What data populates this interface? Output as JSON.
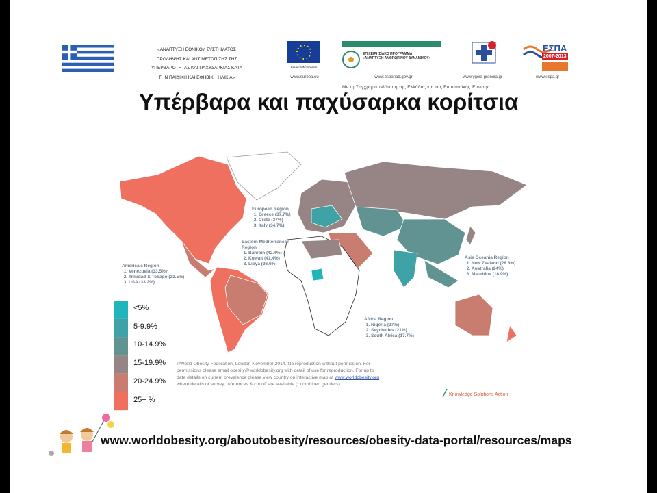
{
  "header": {
    "program_lines": [
      "«ΑΝΑΠΤΥΞΗ ΕΘΝΙΚΟΥ ΣΥΣΤΗΜΑΤΟΣ",
      "ΠΡΟΛΗΨΗΣ ΚΑΙ ΑΝΤΙΜΕΤΩΠΙΣΗΣ ΤΗΣ",
      "ΥΠΕΡΒΑΡΟΤΗΤΑΣ ΚΑΙ ΠΑΧΥΣΑΡΚΙΑΣ ΚΑΤΑ",
      "ΤΗΝ ΠΑΙΔΙΚΗ ΚΑΙ ΕΦΗΒΙΚΗ ΗΛΙΚΙΑ»"
    ],
    "eu_caption": "Ευρωπαϊκή Ένωση",
    "espanad_lines": [
      "ΕΠΙΧΕΙΡΗΣΙΑΚΟ ΠΡΟΓΡΑΜΜΑ",
      "«ΑΝΑΠΤΥΞΗ ΑΝΘΡΩΠΙΝΟΥ ΔΥΝΑΜΙΚΟΥ»"
    ],
    "espa_name": "ΕΣΠΑ",
    "espa_years": "2007-2013",
    "links": [
      "www.europa.eu",
      "www.espanad.gov.gr",
      "www.ygeia-pronoia.gr",
      "www.espa.gr"
    ],
    "cofunding": "Με τη Συγχρηματοδότηση της Ελλάδας και της Ευρωπαϊκής Ένωσης"
  },
  "title": "Υπέρβαρα και παχύσαρκα κορίτσια",
  "regions": [
    {
      "name": "European Region",
      "items": [
        "Greece (37.7%)",
        "Crete (37%)",
        "Italy (34.7%)"
      ]
    },
    {
      "name": "Eastern Mediterranean Region",
      "items": [
        "Bahrain (42.4%)",
        "Kuwait (41.4%)",
        "Libya (36.6%)"
      ]
    },
    {
      "name": "America's  Region",
      "items": [
        "Venezuela (33.5%)*",
        "Trinidad & Tobago (33.5%)",
        "USA (33.2%)"
      ]
    },
    {
      "name": "Asia Oceania Region",
      "items": [
        "New Zealand (28.8%)",
        "Australia (24%)",
        "Mauritius (18.9%)"
      ]
    },
    {
      "name": "Africa  Region",
      "items": [
        "Nigeria (27%)",
        "Seychelles (21%)",
        "South Africa (17.7%)"
      ]
    }
  ],
  "legend": [
    {
      "label": "<5%",
      "color": "#1fb5bb"
    },
    {
      "label": "5-9.9%",
      "color": "#3fa2a6"
    },
    {
      "label": "10-14.9%",
      "color": "#629393"
    },
    {
      "label": "15-19.9%",
      "color": "#968584"
    },
    {
      "label": "20-24.9%",
      "color": "#c97c70"
    },
    {
      "label": "25+ %",
      "color": "#f0705f"
    }
  ],
  "copyright": {
    "lines": [
      "©World Obesity Federation, London November 2014.   No reproduction without permission.  For",
      "permissions please email obesity@worldobesity.org with detail of use for reproduction. For up to",
      "date details on current prevalence please view country on interactive map at",
      "where details of survey, references & cut off are available     (* combined genders)"
    ],
    "link": "www.worldobesity.org"
  },
  "credit": "Knowledge Solutions Action",
  "source_url": "www.worldobesity.org/aboutobesity/resources/obesity-data-portal/resources/maps"
}
